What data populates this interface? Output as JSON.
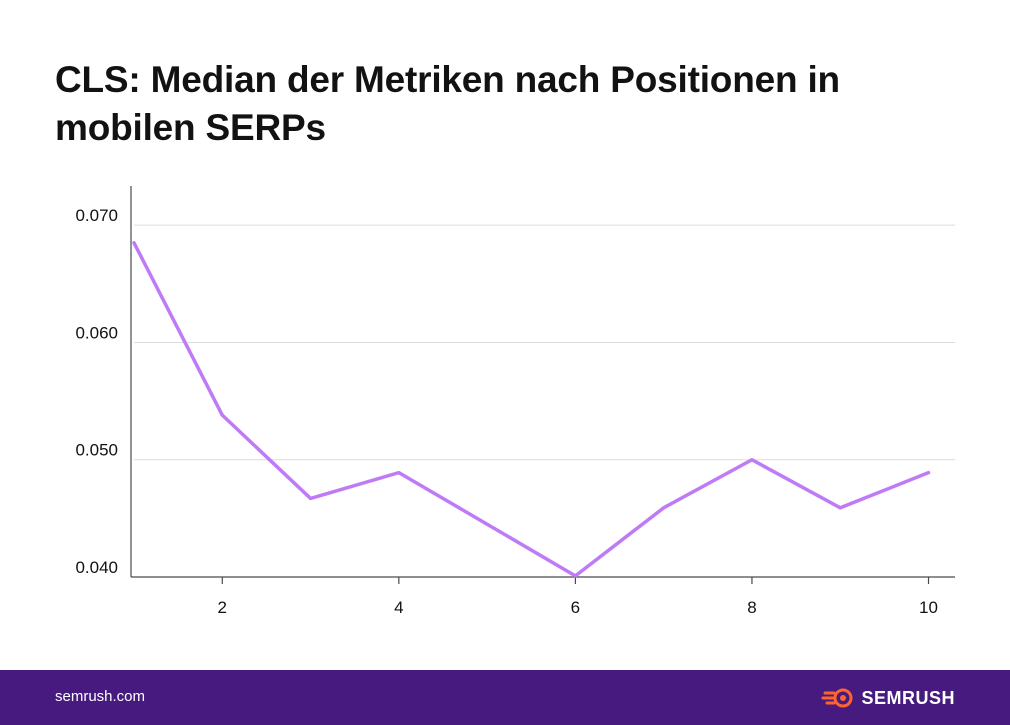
{
  "title": "CLS: Median der Metriken nach Positionen in mobilen SERPs",
  "footer": {
    "url": "semrush.com",
    "brand": "SEMRUSH"
  },
  "colors": {
    "line": "#bf7bf5",
    "footer_bg": "#471a7f",
    "logo_accent": "#ff642d"
  },
  "chart_data": {
    "type": "line",
    "title": "CLS: Median der Metriken nach Positionen in mobilen SERPs",
    "xlabel": "",
    "ylabel": "",
    "x": [
      1,
      2,
      3,
      4,
      5,
      6,
      7,
      8,
      9,
      10
    ],
    "series": [
      {
        "values": [
          0.0685,
          0.0538,
          0.0467,
          0.0489,
          0.0445,
          0.0401,
          0.0459,
          0.05,
          0.0459,
          0.0489
        ]
      }
    ],
    "xticks": [
      2,
      4,
      6,
      8,
      10
    ],
    "xtick_labels": [
      "2",
      "4",
      "6",
      "8",
      "10"
    ],
    "yticks": [
      0.04,
      0.05,
      0.06,
      0.07
    ],
    "ytick_labels": [
      "0.040",
      "0.050",
      "0.060",
      "0.070"
    ],
    "xlim": [
      1,
      10.3
    ],
    "ylim": [
      0.04,
      0.073
    ],
    "grid": true
  }
}
